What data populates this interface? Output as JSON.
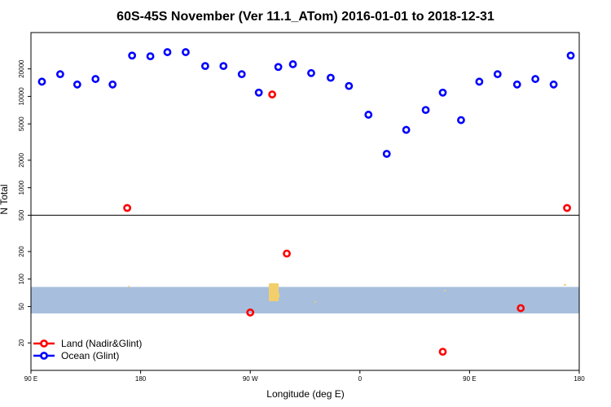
{
  "chart_data": {
    "type": "scatter",
    "title": "60S-45S November (Ver 11.1_ATom)   2016-01-01 to 2018-12-31",
    "xlabel": "Longitude (deg E)",
    "ylabel": "N Total",
    "x_ticks": [
      {
        "value": 90,
        "label": "90 E"
      },
      {
        "value": 180,
        "label": "180"
      },
      {
        "value": 270,
        "label": "90 W"
      },
      {
        "value": 360,
        "label": "0"
      },
      {
        "value": 450,
        "label": "90 E"
      },
      {
        "value": 540,
        "label": "180"
      }
    ],
    "xlim": [
      90,
      540
    ],
    "y_scale": "log",
    "ylim": [
      10,
      50000
    ],
    "y_ticks": [
      {
        "value": 20,
        "label": "20"
      },
      {
        "value": 50,
        "label": "50"
      },
      {
        "value": 100,
        "label": "100"
      },
      {
        "value": 200,
        "label": "200"
      },
      {
        "value": 500,
        "label": "500"
      },
      {
        "value": 1000,
        "label": "1000"
      },
      {
        "value": 2000,
        "label": "2000"
      },
      {
        "value": 5000,
        "label": "5000"
      },
      {
        "value": 10000,
        "label": "10000"
      },
      {
        "value": 20000,
        "label": "20000"
      }
    ],
    "divider_y": 500,
    "latitude_band": {
      "from": 42,
      "to": 82,
      "color": "#a7bfdd",
      "land_color": "#f3cf6b"
    },
    "legend_position": "bottom-left",
    "series": [
      {
        "name": "Land (Nadir&Glint)",
        "color": "#ff0000",
        "points": [
          {
            "x": 169,
            "y": 600
          },
          {
            "x": 270,
            "y": 43
          },
          {
            "x": 288,
            "y": 10500
          },
          {
            "x": 300,
            "y": 190
          },
          {
            "x": 428,
            "y": 16
          },
          {
            "x": 492,
            "y": 48
          },
          {
            "x": 530,
            "y": 600
          }
        ]
      },
      {
        "name": "Ocean (Glint)",
        "color": "#0000ff",
        "points": [
          {
            "x": 99,
            "y": 14500
          },
          {
            "x": 114,
            "y": 17500
          },
          {
            "x": 128,
            "y": 13500
          },
          {
            "x": 143,
            "y": 15500
          },
          {
            "x": 157,
            "y": 13500
          },
          {
            "x": 173,
            "y": 28000
          },
          {
            "x": 188,
            "y": 27500
          },
          {
            "x": 202,
            "y": 30500
          },
          {
            "x": 217,
            "y": 30500
          },
          {
            "x": 233,
            "y": 21500
          },
          {
            "x": 248,
            "y": 21500
          },
          {
            "x": 263,
            "y": 17500
          },
          {
            "x": 277,
            "y": 11000
          },
          {
            "x": 293,
            "y": 21000
          },
          {
            "x": 305,
            "y": 22500
          },
          {
            "x": 320,
            "y": 18000
          },
          {
            "x": 336,
            "y": 16000
          },
          {
            "x": 351,
            "y": 13000
          },
          {
            "x": 367,
            "y": 6300
          },
          {
            "x": 382,
            "y": 2350
          },
          {
            "x": 398,
            "y": 4300
          },
          {
            "x": 414,
            "y": 7100
          },
          {
            "x": 428,
            "y": 11000
          },
          {
            "x": 443,
            "y": 5500
          },
          {
            "x": 458,
            "y": 14500
          },
          {
            "x": 473,
            "y": 17500
          },
          {
            "x": 489,
            "y": 13500
          },
          {
            "x": 504,
            "y": 15500
          },
          {
            "x": 519,
            "y": 13500
          },
          {
            "x": 533,
            "y": 28000
          }
        ]
      }
    ]
  }
}
